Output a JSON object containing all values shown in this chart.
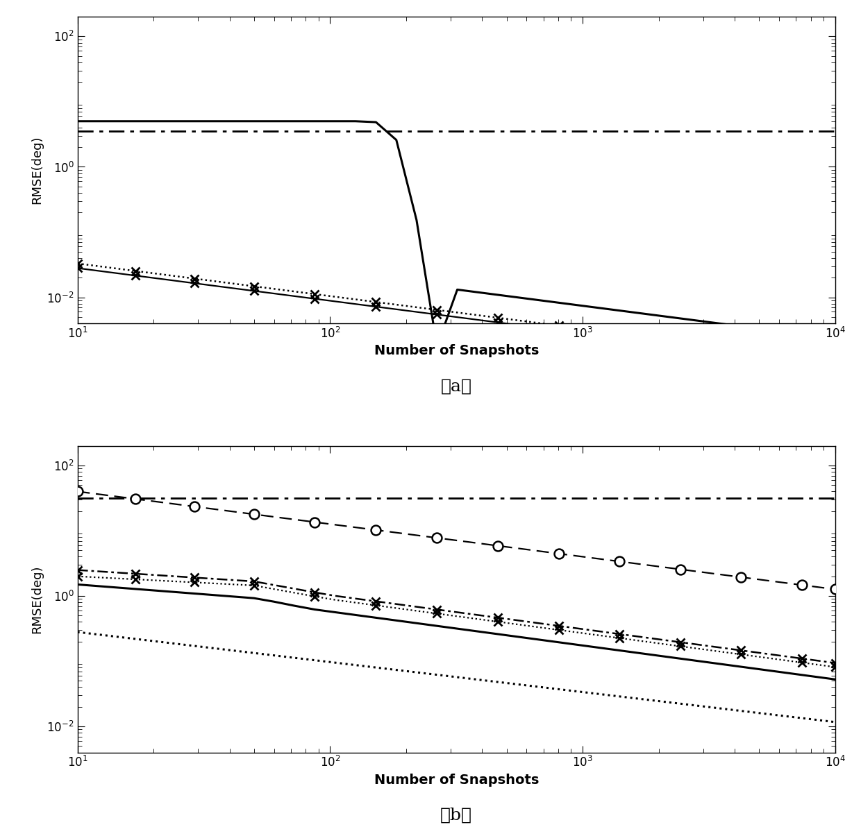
{
  "xlim": [
    10,
    10000
  ],
  "ylim": [
    0.004,
    200
  ],
  "xlabel": "Number of Snapshots",
  "ylabel": "RMSE(deg)",
  "label_a": "（a）",
  "label_b": "（b）",
  "background_color": "#ffffff",
  "x_fine": [
    10,
    12,
    14,
    17,
    20,
    24,
    29,
    35,
    42,
    50,
    60,
    72,
    87,
    105,
    126,
    152,
    183,
    220,
    265,
    319,
    384,
    462,
    556,
    669,
    804,
    968,
    1164,
    1400,
    1685,
    2027,
    2438,
    2932,
    3527,
    4242,
    5102,
    6138,
    7384,
    8881,
    10000
  ],
  "x_markers_a": [
    10,
    17,
    29,
    50,
    87,
    152,
    265,
    462,
    804,
    1400,
    2438,
    4242,
    7384,
    10000
  ],
  "x_markers_b_circle": [
    10,
    17,
    29,
    50,
    87,
    152,
    265,
    462,
    804,
    1400,
    2438,
    4242,
    7384,
    10000
  ],
  "x_markers_b_x1": [
    10,
    17,
    29,
    50,
    87,
    152,
    265,
    462,
    804,
    1400,
    2438,
    4242,
    7384,
    10000
  ],
  "x_markers_b_x2": [
    10,
    17,
    29,
    50,
    87,
    152,
    265,
    462,
    804,
    1400,
    2438,
    4242,
    7384,
    10000
  ]
}
